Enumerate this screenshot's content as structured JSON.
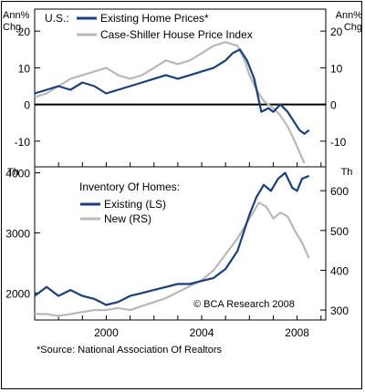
{
  "chart_data": [
    {
      "type": "line",
      "top_left_label": "U.S.:",
      "unit_left": [
        "Ann%",
        "Chg"
      ],
      "unit_right": [
        "Ann%",
        "Chg"
      ],
      "ylim": [
        -17,
        26
      ],
      "yticks": [
        20,
        10,
        0,
        -10
      ],
      "zero_line": true,
      "legend_placement": "top-left",
      "colors": {
        "existing": "#1a3f7a",
        "case_shiller": "#b8b8b8"
      },
      "series": [
        {
          "name": "Existing Home Prices*",
          "x": [
            1997.0,
            1997.5,
            1998.0,
            1998.5,
            1999.0,
            1999.5,
            2000.0,
            2000.5,
            2001.0,
            2001.5,
            2002.0,
            2002.5,
            2003.0,
            2003.5,
            2004.0,
            2004.5,
            2005.0,
            2005.3,
            2005.6,
            2005.9,
            2006.2,
            2006.5,
            2006.8,
            2007.0,
            2007.3,
            2007.6,
            2007.9,
            2008.1,
            2008.3,
            2008.5
          ],
          "values": [
            3,
            4,
            5,
            4,
            6,
            5,
            3,
            4,
            5,
            6,
            7,
            8,
            7,
            8,
            9,
            10,
            12,
            14,
            15,
            12,
            7,
            -2,
            -1,
            -2,
            0,
            -2,
            -5,
            -7,
            -8,
            -7
          ]
        },
        {
          "name": "Case-Shiller House Price Index",
          "x": [
            1997.0,
            1997.5,
            1998.0,
            1998.5,
            1999.0,
            1999.5,
            2000.0,
            2000.5,
            2001.0,
            2001.5,
            2002.0,
            2002.5,
            2003.0,
            2003.5,
            2004.0,
            2004.5,
            2005.0,
            2005.5,
            2005.8,
            2006.0,
            2006.3,
            2006.6,
            2007.0,
            2007.3,
            2007.6,
            2007.9,
            2008.1,
            2008.3
          ],
          "values": [
            2,
            3,
            5,
            7,
            8,
            9,
            10,
            8,
            7,
            8,
            10,
            12,
            11,
            12,
            14,
            16,
            17,
            16,
            12,
            8,
            4,
            1,
            -1,
            -3,
            -6,
            -10,
            -13,
            -16
          ]
        }
      ]
    },
    {
      "type": "line",
      "unit_left": "Th",
      "unit_right": "Th",
      "title": "Inventory Of Homes:",
      "ylim_left": [
        1550,
        4100
      ],
      "yticks_left": [
        4000,
        3000,
        2000
      ],
      "ylim_right": [
        275,
        660
      ],
      "yticks_right": [
        600,
        500,
        400,
        300
      ],
      "xlim": [
        1997.0,
        2009.2
      ],
      "xticks": [
        "2000",
        "2004",
        "2008"
      ],
      "legend_placement": "top-left",
      "annotation": "© BCA Research 2008",
      "colors": {
        "existing": "#1a3f7a",
        "new": "#b8b8b8"
      },
      "series": [
        {
          "name": "Existing (LS)",
          "axis": "left",
          "x": [
            1997.0,
            1997.5,
            1998.0,
            1998.5,
            1999.0,
            1999.5,
            2000.0,
            2000.5,
            2001.0,
            2001.5,
            2002.0,
            2002.5,
            2003.0,
            2003.5,
            2004.0,
            2004.5,
            2005.0,
            2005.5,
            2006.0,
            2006.3,
            2006.6,
            2006.9,
            2007.2,
            2007.5,
            2007.8,
            2008.0,
            2008.2,
            2008.5
          ],
          "values": [
            1950,
            2100,
            1950,
            2050,
            1950,
            1900,
            1800,
            1850,
            1950,
            2000,
            2050,
            2100,
            2150,
            2150,
            2200,
            2250,
            2400,
            2700,
            3300,
            3600,
            3800,
            3700,
            3900,
            4000,
            3750,
            3700,
            3900,
            3950
          ]
        },
        {
          "name": "New (RS)",
          "axis": "right",
          "x": [
            1997.0,
            1997.5,
            1998.0,
            1998.5,
            1999.0,
            1999.5,
            2000.0,
            2000.5,
            2001.0,
            2001.5,
            2002.0,
            2002.5,
            2003.0,
            2003.5,
            2004.0,
            2004.5,
            2005.0,
            2005.5,
            2005.8,
            2006.1,
            2006.4,
            2006.7,
            2007.0,
            2007.3,
            2007.6,
            2007.9,
            2008.2,
            2008.5
          ],
          "values": [
            290,
            290,
            285,
            290,
            295,
            300,
            300,
            305,
            300,
            310,
            320,
            330,
            345,
            360,
            375,
            400,
            440,
            480,
            510,
            540,
            570,
            560,
            530,
            545,
            535,
            500,
            470,
            430
          ]
        }
      ]
    }
  ],
  "source_note": "*Source:  National Association Of Realtors"
}
